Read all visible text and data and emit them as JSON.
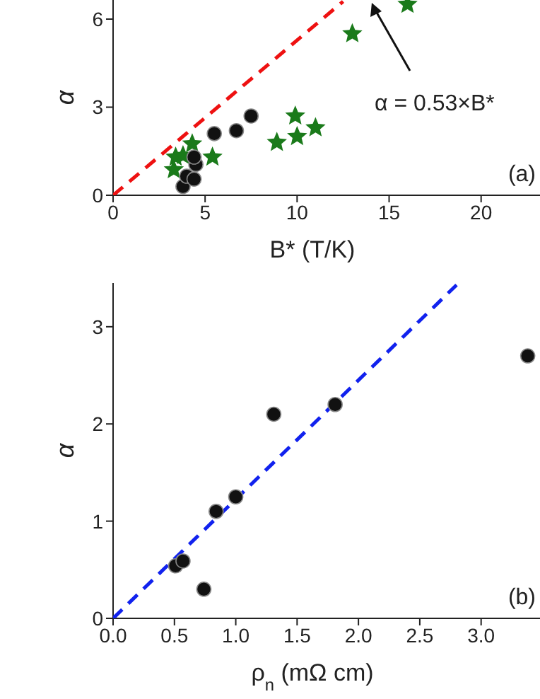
{
  "chart_data": [
    {
      "type": "scatter",
      "xlabel": "B* (T/K)",
      "ylabel": "α",
      "annotations": [
        "α = 0.53×B*",
        "(a)"
      ],
      "xlim": [
        0,
        23.2
      ],
      "ylim": [
        0,
        6.65
      ],
      "xticks": [
        0,
        5,
        10,
        15,
        20
      ],
      "yticks": [
        0,
        3,
        6
      ],
      "series": [
        {
          "type": "line",
          "color": "#ee1111",
          "line_style": "dashed",
          "marker": "none",
          "x": [
            0,
            12.5
          ],
          "values": [
            0,
            6.6
          ]
        },
        {
          "type": "scatter",
          "color": "#1a7a1a",
          "marker": "star",
          "x": [
            13,
            16,
            9.9,
            10,
            11,
            8.9,
            5.4,
            4.3,
            3.4,
            3.3,
            3.8
          ],
          "values": [
            5.5,
            6.5,
            2.7,
            2.0,
            2.3,
            1.8,
            1.3,
            1.75,
            1.3,
            0.87,
            1.35
          ]
        },
        {
          "type": "scatter",
          "color": "#111111",
          "marker": "circle",
          "x": [
            3.8,
            4.0,
            4.4,
            4.5,
            4.4,
            5.5,
            6.7,
            7.5
          ],
          "values": [
            0.3,
            0.65,
            0.55,
            1.05,
            1.3,
            2.1,
            2.2,
            2.7
          ]
        }
      ]
    },
    {
      "type": "scatter",
      "xlabel": "ρ$_{n}$ (mΩ cm)",
      "ylabel": "α",
      "annotations": [
        "(b)"
      ],
      "xlim": [
        0,
        3.48
      ],
      "ylim": [
        0,
        3.45
      ],
      "xticks": [
        {
          "value": 0,
          "label": "0.0"
        },
        {
          "value": 0.5,
          "label": "0.5"
        },
        {
          "value": 1,
          "label": "1.0"
        },
        {
          "value": 1.5,
          "label": "1.5"
        },
        {
          "value": 2,
          "label": "2.0"
        },
        {
          "value": 2.5,
          "label": "2.5"
        },
        {
          "value": 3,
          "label": "3.0"
        }
      ],
      "yticks": [
        0,
        1,
        2,
        3
      ],
      "series": [
        {
          "type": "line",
          "color": "#1122ee",
          "line_style": "dashed",
          "marker": "none",
          "x": [
            0,
            2.8
          ],
          "values": [
            0,
            3.43
          ]
        },
        {
          "type": "scatter",
          "color": "#111111",
          "marker": "circle",
          "x": [
            0.51,
            0.57,
            0.74,
            0.84,
            1.0,
            1.31,
            1.81,
            3.38
          ],
          "values": [
            0.54,
            0.59,
            0.3,
            1.1,
            1.25,
            2.1,
            2.2,
            2.7
          ]
        }
      ]
    }
  ]
}
